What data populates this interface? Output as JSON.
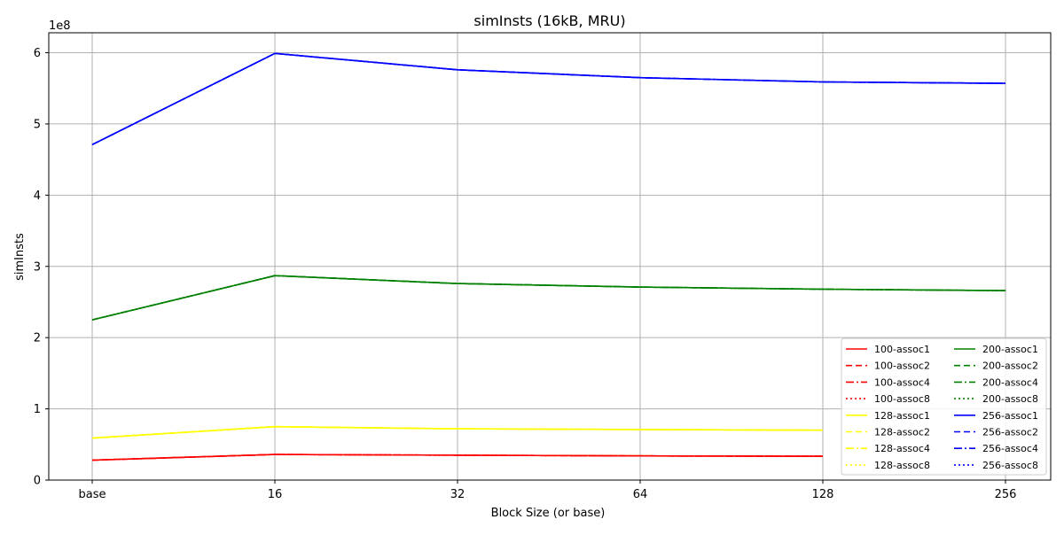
{
  "chart_data": {
    "type": "line",
    "title": "simInsts (16kB, MRU)",
    "xlabel": "Block Size (or base)",
    "ylabel": "simInsts",
    "y_scale_label": "1e8",
    "categories": [
      "base",
      "16",
      "32",
      "64",
      "128",
      "256"
    ],
    "y_ticks": [
      0,
      1,
      2,
      3,
      4,
      5,
      6
    ],
    "y_scale": 100000000,
    "ylim": [
      0,
      628000000
    ],
    "grid": true,
    "legend": {
      "position": "lower-right",
      "columns": 2
    },
    "series": [
      {
        "name": "100-assoc1",
        "color": "#ff0000",
        "style": "solid",
        "values": [
          28000000,
          36000000,
          35000000,
          34000000,
          33500000,
          null
        ]
      },
      {
        "name": "100-assoc2",
        "color": "#ff0000",
        "style": "dashed",
        "values": [
          28000000,
          36000000,
          35000000,
          34000000,
          33500000,
          null
        ]
      },
      {
        "name": "100-assoc4",
        "color": "#ff0000",
        "style": "dashdot",
        "values": [
          28000000,
          36000000,
          35000000,
          34000000,
          33500000,
          null
        ]
      },
      {
        "name": "100-assoc8",
        "color": "#ff0000",
        "style": "dotted",
        "values": [
          28000000,
          36000000,
          35000000,
          34000000,
          33500000,
          null
        ]
      },
      {
        "name": "128-assoc1",
        "color": "#ffff00",
        "style": "solid",
        "values": [
          59000000,
          75000000,
          72000000,
          71000000,
          70000000,
          null
        ]
      },
      {
        "name": "128-assoc2",
        "color": "#ffff00",
        "style": "dashed",
        "values": [
          59000000,
          75000000,
          72000000,
          71000000,
          70000000,
          null
        ]
      },
      {
        "name": "128-assoc4",
        "color": "#ffff00",
        "style": "dashdot",
        "values": [
          59000000,
          75000000,
          72000000,
          71000000,
          70000000,
          null
        ]
      },
      {
        "name": "128-assoc8",
        "color": "#ffff00",
        "style": "dotted",
        "values": [
          59000000,
          75000000,
          72000000,
          71000000,
          70000000,
          null
        ]
      },
      {
        "name": "200-assoc1",
        "color": "#008000",
        "style": "solid",
        "values": [
          225000000,
          287000000,
          276000000,
          271000000,
          268000000,
          266000000
        ]
      },
      {
        "name": "200-assoc2",
        "color": "#008000",
        "style": "dashed",
        "values": [
          225000000,
          287000000,
          276000000,
          271000000,
          268000000,
          266000000
        ]
      },
      {
        "name": "200-assoc4",
        "color": "#008000",
        "style": "dashdot",
        "values": [
          225000000,
          287000000,
          276000000,
          271000000,
          268000000,
          266000000
        ]
      },
      {
        "name": "200-assoc8",
        "color": "#008000",
        "style": "dotted",
        "values": [
          225000000,
          287000000,
          276000000,
          271000000,
          268000000,
          266000000
        ]
      },
      {
        "name": "256-assoc1",
        "color": "#0000ff",
        "style": "solid",
        "values": [
          471000000,
          599000000,
          576000000,
          565000000,
          559000000,
          557000000
        ]
      },
      {
        "name": "256-assoc2",
        "color": "#0000ff",
        "style": "dashed",
        "values": [
          471000000,
          599000000,
          576000000,
          565000000,
          559000000,
          557000000
        ]
      },
      {
        "name": "256-assoc4",
        "color": "#0000ff",
        "style": "dashdot",
        "values": [
          471000000,
          599000000,
          576000000,
          565000000,
          559000000,
          557000000
        ]
      },
      {
        "name": "256-assoc8",
        "color": "#0000ff",
        "style": "dotted",
        "values": [
          471000000,
          599000000,
          576000000,
          565000000,
          559000000,
          557000000
        ]
      }
    ]
  }
}
